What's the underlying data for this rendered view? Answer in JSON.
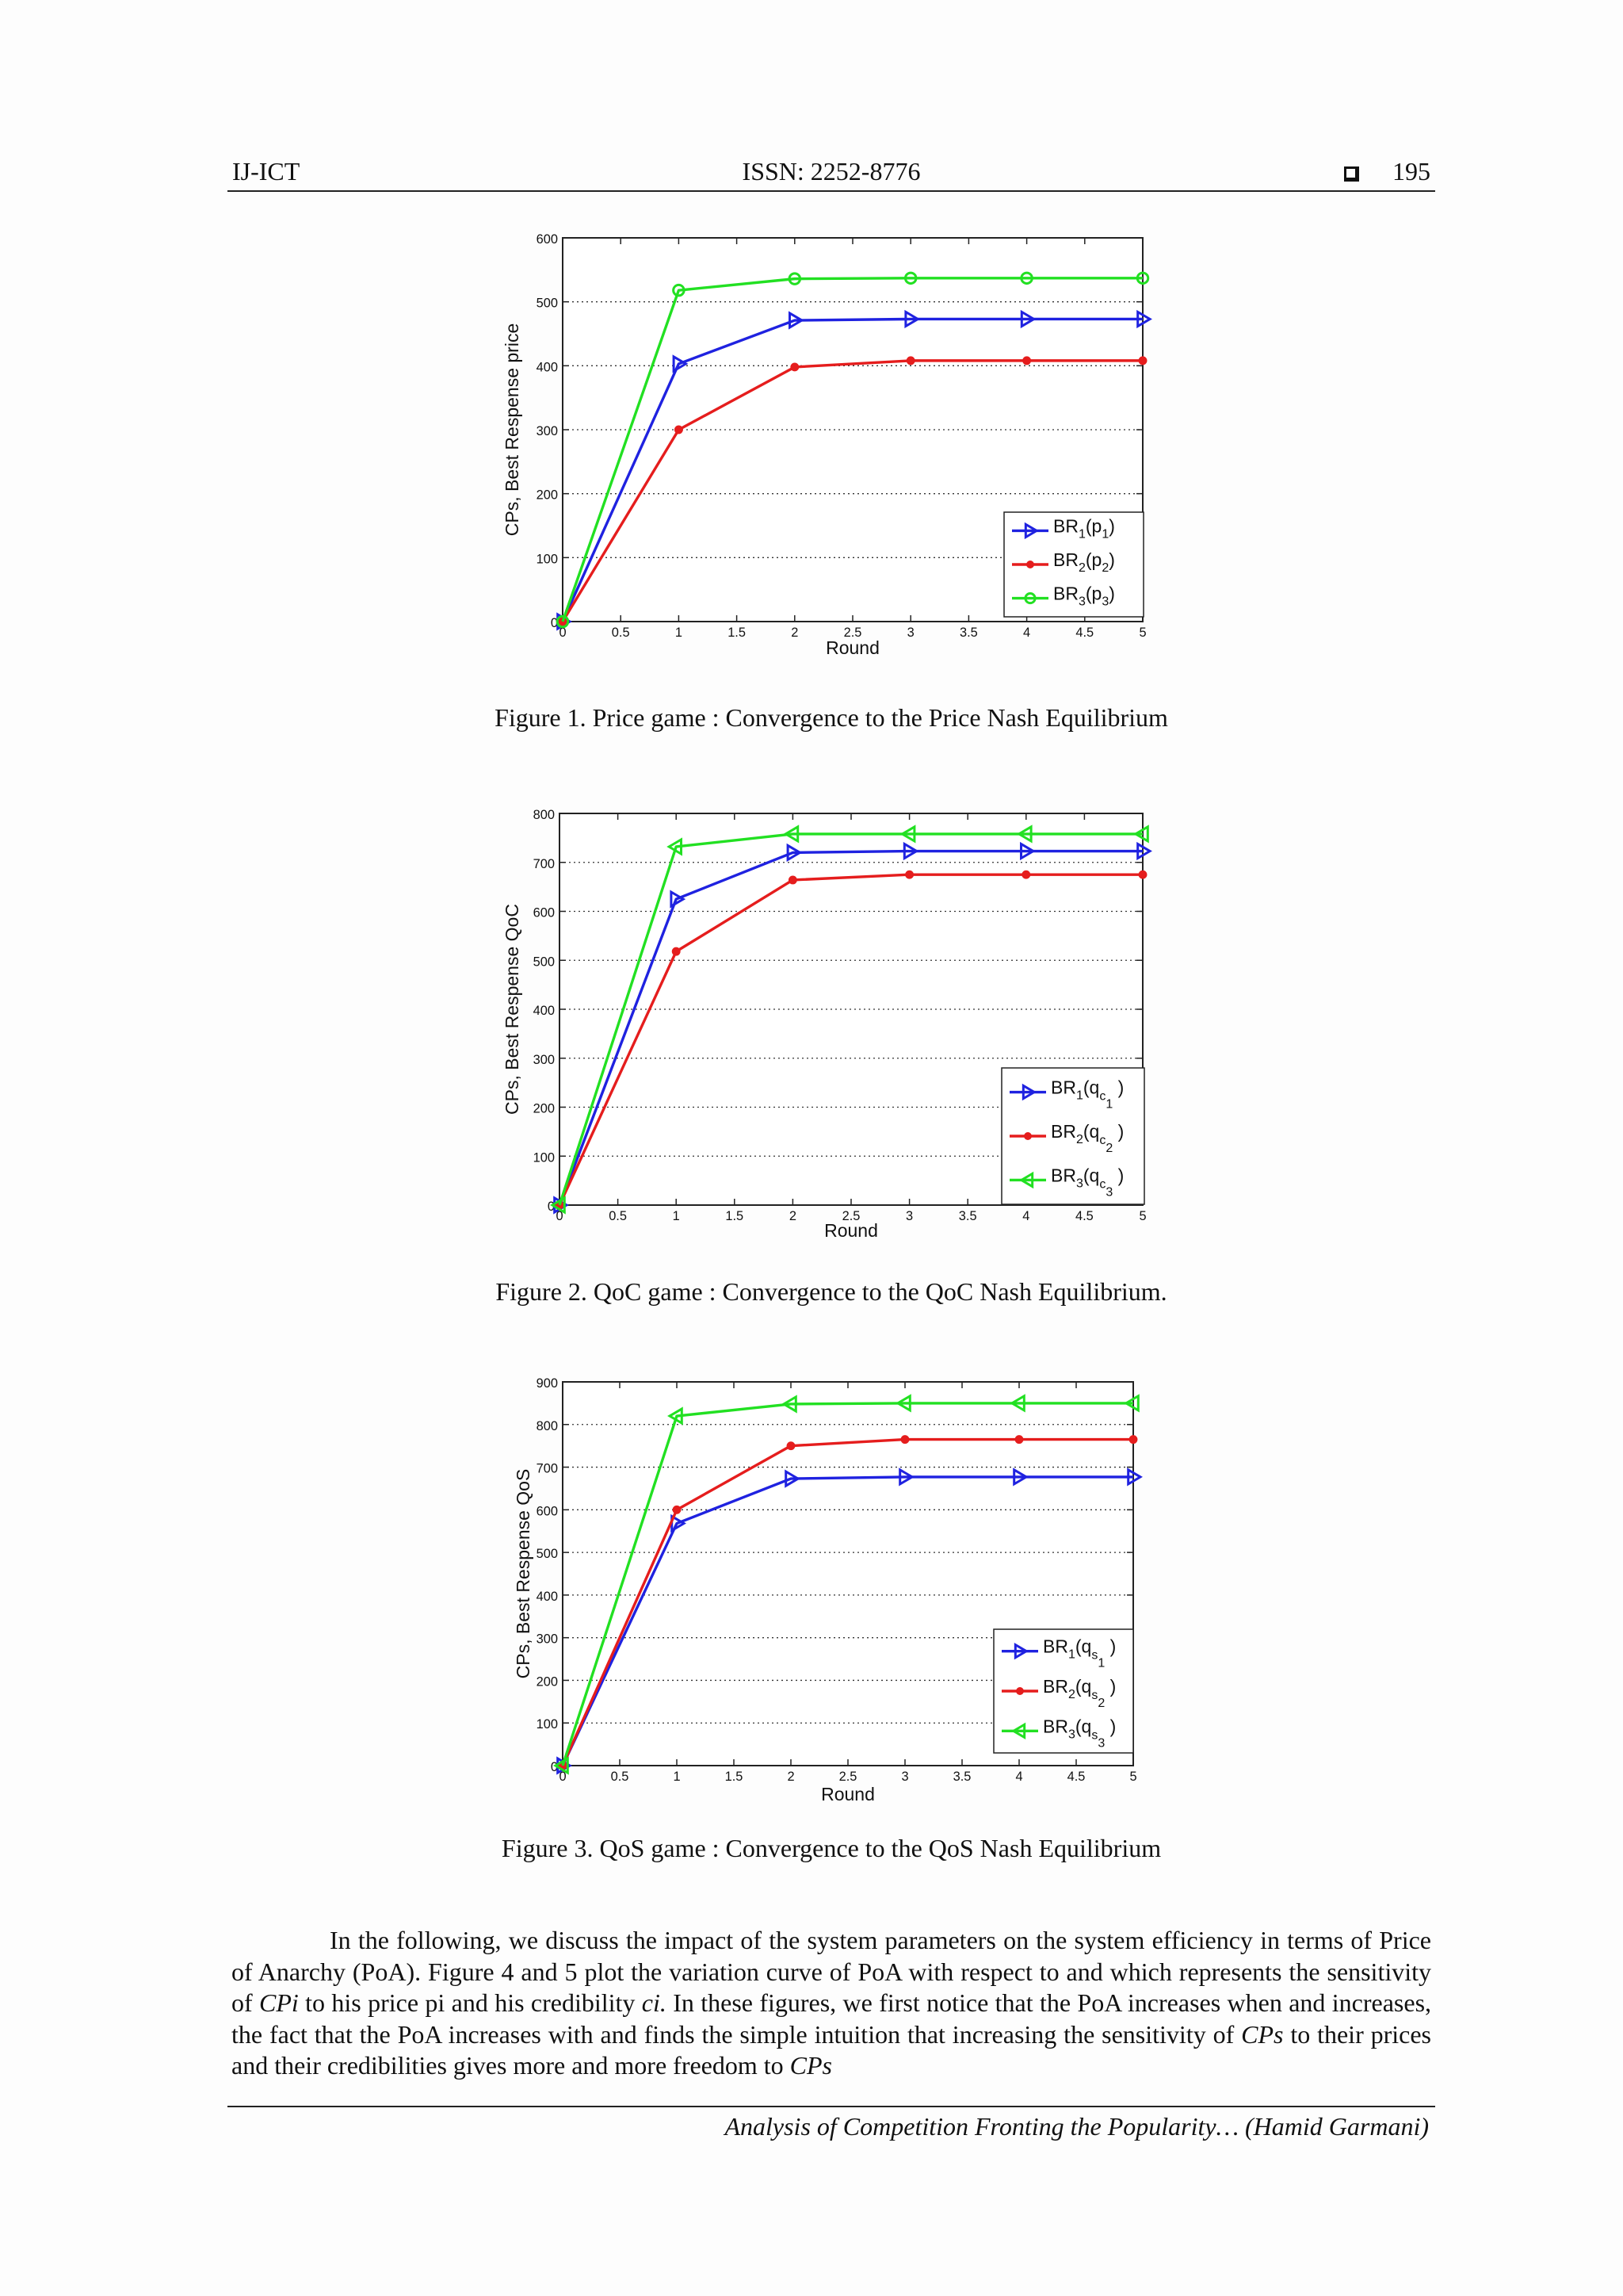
{
  "header": {
    "journal": "IJ-ICT",
    "issn": "ISSN: 2252-8776",
    "page_number": "195"
  },
  "figures": [
    {
      "caption": "Figure 1. Price game : Convergence to the Price Nash Equilibrium",
      "chart_data": {
        "type": "line",
        "xlabel": "Round",
        "ylabel": "CPs, Best Respense price",
        "xlim": [
          0,
          5
        ],
        "ylim": [
          0,
          600
        ],
        "xticks": [
          "0",
          "0.5",
          "1",
          "1.5",
          "2",
          "2.5",
          "3",
          "3.5",
          "4",
          "4.5",
          "5"
        ],
        "yticks": [
          "0",
          "100",
          "200",
          "300",
          "400",
          "500",
          "600"
        ],
        "grid": "horizontal dotted",
        "legend_position": "bottom-right",
        "x": [
          0,
          1,
          2,
          3,
          4,
          5
        ],
        "series": [
          {
            "name": "BR1(p1)",
            "label": {
              "base": "BR",
              "s1": "1",
              "arg": "p",
              "s2": "1",
              "s3": ""
            },
            "color": "#1f22e0",
            "marker": "triangle-right",
            "values": [
              0,
              403,
              471,
              473,
              473,
              473
            ]
          },
          {
            "name": "BR2(p2)",
            "label": {
              "base": "BR",
              "s1": "2",
              "arg": "p",
              "s2": "2",
              "s3": ""
            },
            "color": "#e51d1d",
            "marker": "diamond",
            "values": [
              0,
              300,
              398,
              408,
              408,
              408
            ]
          },
          {
            "name": "BR3(p3)",
            "label": {
              "base": "BR",
              "s1": "3",
              "arg": "p",
              "s2": "3",
              "s3": ""
            },
            "color": "#22e022",
            "marker": "circle",
            "values": [
              0,
              518,
              536,
              537,
              537,
              537
            ]
          }
        ]
      }
    },
    {
      "caption": "Figure 2. QoC game : Convergence to the QoC Nash Equilibrium.",
      "chart_data": {
        "type": "line",
        "xlabel": "Round",
        "ylabel": "CPs, Best Respense  QoC",
        "xlim": [
          0,
          5
        ],
        "ylim": [
          0,
          800
        ],
        "xticks": [
          "0",
          "0.5",
          "1",
          "1.5",
          "2",
          "2.5",
          "3",
          "3.5",
          "4",
          "4.5",
          "5"
        ],
        "yticks": [
          "0",
          "100",
          "200",
          "300",
          "400",
          "500",
          "600",
          "700",
          "800"
        ],
        "grid": "horizontal dotted",
        "legend_position": "bottom-right",
        "x": [
          0,
          1,
          2,
          3,
          4,
          5
        ],
        "series": [
          {
            "name": "BR1(qc1)",
            "label": {
              "base": "BR",
              "s1": "1",
              "arg": "q",
              "s2": "c",
              "s3": "1"
            },
            "color": "#1f22e0",
            "marker": "triangle-right",
            "values": [
              0,
              625,
              720,
              723,
              723,
              723
            ]
          },
          {
            "name": "BR2(qc2)",
            "label": {
              "base": "BR",
              "s1": "2",
              "arg": "q",
              "s2": "c",
              "s3": "2"
            },
            "color": "#e51d1d",
            "marker": "diamond",
            "values": [
              0,
              518,
              664,
              675,
              675,
              675
            ]
          },
          {
            "name": "BR3(qc3)",
            "label": {
              "base": "BR",
              "s1": "3",
              "arg": "q",
              "s2": "c",
              "s3": "3"
            },
            "color": "#22e022",
            "marker": "triangle-left",
            "values": [
              0,
              732,
              758,
              758,
              758,
              758
            ]
          }
        ]
      }
    },
    {
      "caption": "Figure 3. QoS game : Convergence to the QoS Nash Equilibrium",
      "chart_data": {
        "type": "line",
        "xlabel": "Round",
        "ylabel": "CPs, Best Respense  QoS",
        "xlim": [
          0,
          5
        ],
        "ylim": [
          0,
          900
        ],
        "xticks": [
          "0",
          "0.5",
          "1",
          "1.5",
          "2",
          "2.5",
          "3",
          "3.5",
          "4",
          "4.5",
          "5"
        ],
        "yticks": [
          "0",
          "100",
          "200",
          "300",
          "400",
          "500",
          "600",
          "700",
          "800",
          "900"
        ],
        "grid": "horizontal dotted",
        "legend_position": "bottom-right",
        "x": [
          0,
          1,
          2,
          3,
          4,
          5
        ],
        "series": [
          {
            "name": "BR1(qs1)",
            "label": {
              "base": "BR",
              "s1": "1",
              "arg": "q",
              "s2": "s",
              "s3": "1"
            },
            "color": "#1f22e0",
            "marker": "triangle-right",
            "values": [
              0,
              568,
              673,
              677,
              677,
              677
            ]
          },
          {
            "name": "BR2(qs2)",
            "label": {
              "base": "BR",
              "s1": "2",
              "arg": "q",
              "s2": "s",
              "s3": "2"
            },
            "color": "#e51d1d",
            "marker": "diamond",
            "values": [
              0,
              600,
              750,
              765,
              765,
              765
            ]
          },
          {
            "name": "BR3(qs3)",
            "label": {
              "base": "BR",
              "s1": "3",
              "arg": "q",
              "s2": "s",
              "s3": "3"
            },
            "color": "#22e022",
            "marker": "triangle-left",
            "values": [
              0,
              820,
              848,
              850,
              850,
              850
            ]
          }
        ]
      }
    }
  ],
  "body": {
    "s1": "In the following, we discuss the impact of the system parameters on the system efficiency in terms of Price of Anarchy (PoA). Figure 4 and 5 plot the variation curve of PoA with respect to and which represents the sensitivity of ",
    "cpi": "CPi",
    "s2": " to his price pi and his credibility ",
    "ci": "ci.",
    "s3": " In these figures, we first notice that the PoA increases when and increases, the fact that the PoA increases with and finds the simple intuition that increasing the sensitivity of ",
    "cps1": "CPs",
    "s4": " to their prices and their credibilities gives more and more freedom to ",
    "cps2": "CPs"
  },
  "footer": "Analysis of Competition Fronting the Popularity… (Hamid Garmani)"
}
